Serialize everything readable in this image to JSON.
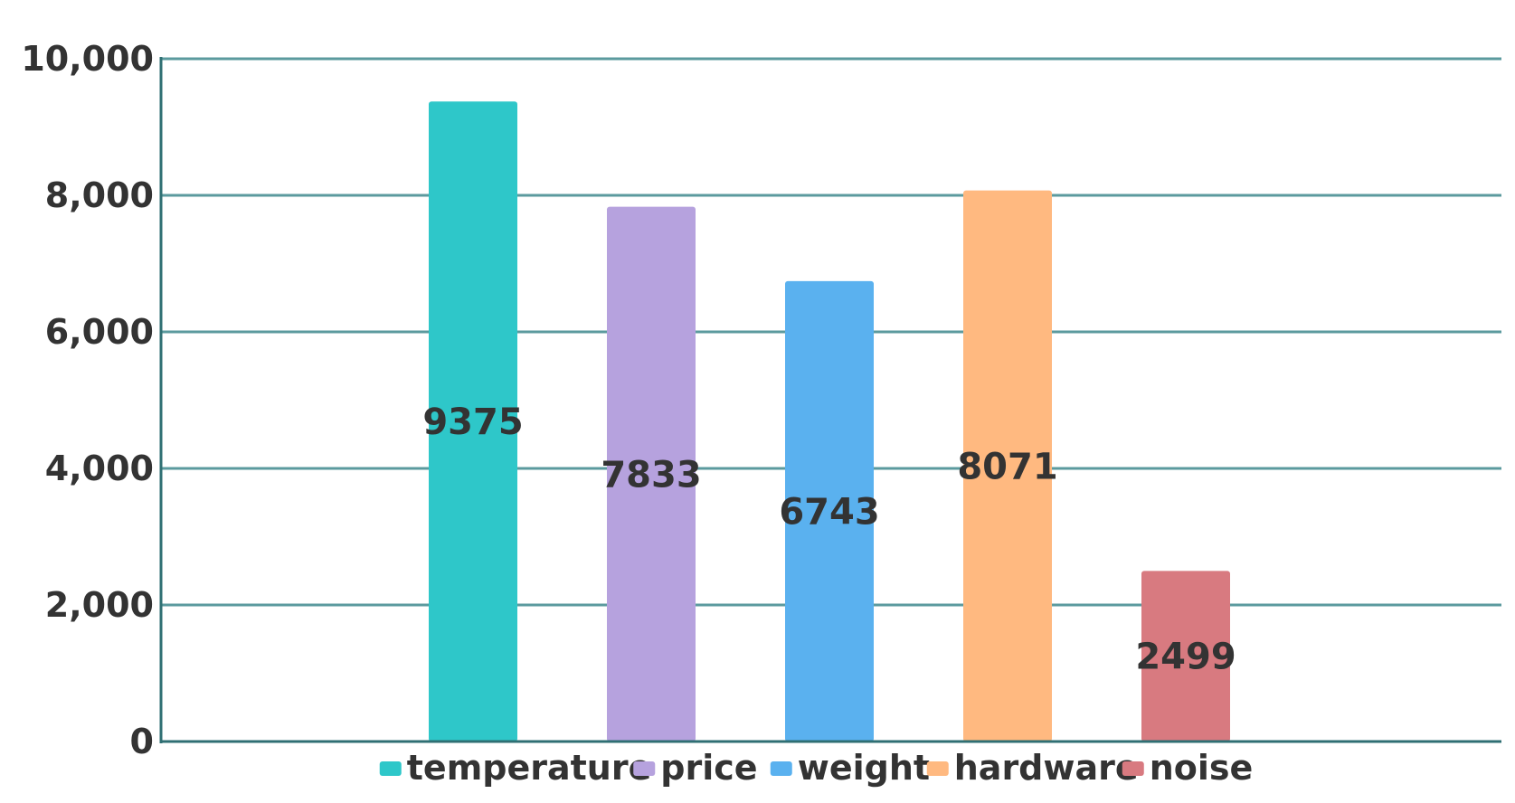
{
  "chart_data": {
    "type": "bar",
    "categories": [
      "temperature",
      "price",
      "weight",
      "hardware",
      "noise"
    ],
    "values": [
      9375,
      7833,
      6743,
      8071,
      2499
    ],
    "data_labels": [
      "9375",
      "7833",
      "6743",
      "8071",
      "2499"
    ],
    "colors": [
      "#2ec7c9",
      "#b6a2de",
      "#5ab1ef",
      "#ffb980",
      "#d87a80"
    ],
    "ylim": [
      0,
      10000
    ],
    "yticks": [
      0,
      2000,
      4000,
      6000,
      8000,
      10000
    ],
    "ytick_labels": [
      "0",
      "2,000",
      "4,000",
      "6,000",
      "8,000",
      "10,000"
    ],
    "grid": true,
    "grid_color": "#5b9a9e",
    "legend_position": "bottom",
    "title": "",
    "xlabel": "",
    "ylabel": ""
  }
}
